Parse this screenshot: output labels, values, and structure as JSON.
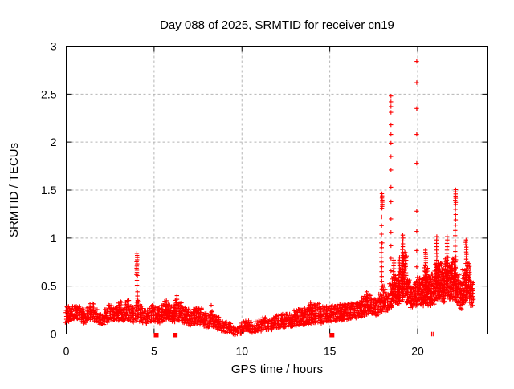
{
  "page": {
    "background": "#ffffff",
    "kind": "gnuplot-style scatter plot screenshot"
  },
  "chart_data": {
    "type": "scatter",
    "title": "Day 088 of 2025, SRMTID for receiver cn19",
    "xlabel": "GPS time / hours",
    "ylabel": "SRMTID / TECUs",
    "receiver": "cn19",
    "day_of_year": "088",
    "year": "2025",
    "xlim": [
      0,
      24
    ],
    "ylim": [
      0,
      3
    ],
    "xticks": [
      0,
      5,
      10,
      15,
      20
    ],
    "yticks": [
      0,
      0.5,
      1,
      1.5,
      2,
      2.5,
      3
    ],
    "grid": true,
    "legend": "none",
    "marker": "plus",
    "marker_color": "#ff0000",
    "grid_color": "#b5b5b5",
    "axis_color": "#000000",
    "band": [
      [
        0.0,
        0.13,
        0.28
      ],
      [
        0.2,
        0.15,
        0.27
      ],
      [
        0.4,
        0.16,
        0.3
      ],
      [
        0.6,
        0.17,
        0.3
      ],
      [
        0.8,
        0.14,
        0.26
      ],
      [
        1.0,
        0.12,
        0.23
      ],
      [
        1.2,
        0.15,
        0.28
      ],
      [
        1.4,
        0.16,
        0.31
      ],
      [
        1.6,
        0.13,
        0.26
      ],
      [
        1.8,
        0.11,
        0.22
      ],
      [
        2.0,
        0.1,
        0.21
      ],
      [
        2.2,
        0.13,
        0.27
      ],
      [
        2.4,
        0.15,
        0.3
      ],
      [
        2.6,
        0.14,
        0.28
      ],
      [
        2.8,
        0.16,
        0.3
      ],
      [
        3.0,
        0.15,
        0.33
      ],
      [
        3.2,
        0.14,
        0.28
      ],
      [
        3.4,
        0.16,
        0.34
      ],
      [
        3.6,
        0.14,
        0.3
      ],
      [
        3.8,
        0.13,
        0.26
      ],
      [
        4.0,
        0.18,
        0.33
      ],
      [
        4.2,
        0.14,
        0.3
      ],
      [
        4.4,
        0.12,
        0.26
      ],
      [
        4.6,
        0.13,
        0.25
      ],
      [
        4.8,
        0.14,
        0.29
      ],
      [
        5.0,
        0.13,
        0.29
      ],
      [
        5.2,
        0.12,
        0.27
      ],
      [
        5.4,
        0.14,
        0.31
      ],
      [
        5.6,
        0.16,
        0.34
      ],
      [
        5.8,
        0.15,
        0.32
      ],
      [
        6.0,
        0.13,
        0.29
      ],
      [
        6.2,
        0.15,
        0.37
      ],
      [
        6.4,
        0.14,
        0.33
      ],
      [
        6.6,
        0.12,
        0.28
      ],
      [
        6.8,
        0.11,
        0.26
      ],
      [
        7.0,
        0.1,
        0.24
      ],
      [
        7.2,
        0.11,
        0.26
      ],
      [
        7.4,
        0.12,
        0.29
      ],
      [
        7.6,
        0.11,
        0.27
      ],
      [
        7.8,
        0.09,
        0.23
      ],
      [
        8.0,
        0.07,
        0.2
      ],
      [
        8.2,
        0.08,
        0.24
      ],
      [
        8.4,
        0.07,
        0.21
      ],
      [
        8.6,
        0.05,
        0.17
      ],
      [
        8.8,
        0.04,
        0.15
      ],
      [
        9.0,
        0.03,
        0.13
      ],
      [
        9.2,
        0.02,
        0.11
      ],
      [
        9.4,
        0.01,
        0.09
      ],
      [
        9.6,
        0.0,
        0.08
      ],
      [
        9.8,
        0.01,
        0.09
      ],
      [
        10.0,
        0.03,
        0.12
      ],
      [
        10.2,
        0.04,
        0.15
      ],
      [
        10.4,
        0.03,
        0.12
      ],
      [
        10.6,
        0.02,
        0.1
      ],
      [
        10.8,
        0.03,
        0.12
      ],
      [
        11.0,
        0.04,
        0.15
      ],
      [
        11.2,
        0.05,
        0.17
      ],
      [
        11.4,
        0.05,
        0.16
      ],
      [
        11.6,
        0.05,
        0.15
      ],
      [
        11.8,
        0.06,
        0.18
      ],
      [
        12.0,
        0.07,
        0.2
      ],
      [
        12.2,
        0.08,
        0.21
      ],
      [
        12.4,
        0.08,
        0.22
      ],
      [
        12.6,
        0.09,
        0.22
      ],
      [
        12.8,
        0.08,
        0.21
      ],
      [
        13.0,
        0.09,
        0.24
      ],
      [
        13.2,
        0.1,
        0.25
      ],
      [
        13.4,
        0.1,
        0.26
      ],
      [
        13.6,
        0.11,
        0.27
      ],
      [
        13.8,
        0.12,
        0.3
      ],
      [
        14.0,
        0.12,
        0.31
      ],
      [
        14.2,
        0.13,
        0.31
      ],
      [
        14.4,
        0.12,
        0.29
      ],
      [
        14.6,
        0.13,
        0.28
      ],
      [
        14.8,
        0.13,
        0.29
      ],
      [
        15.0,
        0.14,
        0.3
      ],
      [
        15.2,
        0.14,
        0.29
      ],
      [
        15.4,
        0.15,
        0.31
      ],
      [
        15.6,
        0.15,
        0.32
      ],
      [
        15.8,
        0.16,
        0.32
      ],
      [
        16.0,
        0.16,
        0.33
      ],
      [
        16.2,
        0.17,
        0.33
      ],
      [
        16.4,
        0.17,
        0.34
      ],
      [
        16.6,
        0.18,
        0.35
      ],
      [
        16.8,
        0.19,
        0.37
      ],
      [
        17.0,
        0.21,
        0.41
      ],
      [
        17.2,
        0.22,
        0.42
      ],
      [
        17.4,
        0.21,
        0.38
      ],
      [
        17.6,
        0.2,
        0.36
      ],
      [
        17.8,
        0.23,
        0.42
      ],
      [
        18.0,
        0.26,
        0.5
      ],
      [
        18.2,
        0.24,
        0.44
      ],
      [
        18.4,
        0.28,
        0.52
      ],
      [
        18.6,
        0.33,
        0.6
      ],
      [
        18.8,
        0.32,
        0.58
      ],
      [
        19.0,
        0.35,
        0.7
      ],
      [
        19.2,
        0.4,
        0.85
      ],
      [
        19.4,
        0.32,
        0.58
      ],
      [
        19.6,
        0.28,
        0.5
      ],
      [
        19.8,
        0.3,
        0.55
      ],
      [
        20.0,
        0.32,
        0.6
      ],
      [
        20.2,
        0.3,
        0.58
      ],
      [
        20.4,
        0.32,
        0.7
      ],
      [
        20.6,
        0.3,
        0.6
      ],
      [
        20.8,
        0.32,
        0.62
      ],
      [
        21.0,
        0.36,
        0.72
      ],
      [
        21.2,
        0.38,
        0.75
      ],
      [
        21.4,
        0.34,
        0.68
      ],
      [
        21.6,
        0.4,
        0.8
      ],
      [
        21.8,
        0.36,
        0.72
      ],
      [
        22.0,
        0.36,
        0.8
      ],
      [
        22.2,
        0.32,
        0.62
      ],
      [
        22.4,
        0.27,
        0.55
      ],
      [
        22.6,
        0.33,
        0.68
      ],
      [
        22.8,
        0.38,
        0.75
      ],
      [
        23.0,
        0.3,
        0.55
      ]
    ],
    "columns": [
      {
        "x": 4.02,
        "y0": 0.62,
        "y1": 0.85,
        "d": 0.022
      },
      {
        "x": 4.04,
        "y0": 0.46,
        "y1": 0.62,
        "d": 0.05
      },
      {
        "x": 4.05,
        "y0": 0.33,
        "y1": 0.46,
        "d": 0.022
      },
      {
        "x": 17.95,
        "y0": 0.5,
        "y1": 0.95,
        "d": 0.05
      },
      {
        "x": 17.97,
        "y0": 0.95,
        "y1": 1.32,
        "d": 0.09
      },
      {
        "x": 17.98,
        "y0": 1.33,
        "y1": 1.47,
        "d": 0.022
      },
      {
        "x": 18.65,
        "y0": 0.35,
        "y1": 0.78,
        "d": 0.03
      },
      {
        "x": 18.95,
        "y0": 0.35,
        "y1": 0.8,
        "d": 0.03
      },
      {
        "x": 19.15,
        "y0": 0.4,
        "y1": 1.05,
        "d": 0.03
      },
      {
        "x": 20.45,
        "y0": 0.72,
        "y1": 0.88,
        "d": 0.022
      },
      {
        "x": 20.45,
        "y0": 0.35,
        "y1": 0.72,
        "d": 0.06
      },
      {
        "x": 21.1,
        "y0": 0.42,
        "y1": 1.02,
        "d": 0.035
      },
      {
        "x": 21.68,
        "y0": 0.42,
        "y1": 1.03,
        "d": 0.035
      },
      {
        "x": 22.15,
        "y0": 1.35,
        "y1": 1.52,
        "d": 0.022
      },
      {
        "x": 22.15,
        "y0": 0.42,
        "y1": 1.34,
        "d": 0.055
      },
      {
        "x": 22.76,
        "y0": 0.78,
        "y1": 1.0,
        "d": 0.025
      },
      {
        "x": 22.76,
        "y0": 0.35,
        "y1": 0.77,
        "d": 0.055
      }
    ],
    "outliers": [
      [
        18.48,
        2.48
      ],
      [
        18.48,
        2.42
      ],
      [
        18.48,
        2.37
      ],
      [
        18.48,
        2.31
      ],
      [
        18.48,
        2.18
      ],
      [
        18.48,
        2.08
      ],
      [
        18.48,
        1.99
      ],
      [
        18.48,
        1.85
      ],
      [
        18.48,
        1.71
      ],
      [
        18.48,
        1.53
      ],
      [
        18.48,
        1.38
      ],
      [
        18.48,
        1.2
      ],
      [
        18.48,
        1.06
      ],
      [
        18.48,
        0.92
      ],
      [
        18.48,
        0.79
      ],
      [
        18.48,
        0.66
      ],
      [
        19.95,
        2.84
      ],
      [
        19.95,
        2.62
      ],
      [
        19.95,
        2.35
      ],
      [
        19.95,
        2.08
      ],
      [
        19.95,
        1.78
      ],
      [
        19.95,
        1.28
      ],
      [
        19.95,
        1.07
      ],
      [
        19.95,
        0.87
      ],
      [
        19.95,
        0.7
      ],
      [
        6.3,
        0.4
      ],
      [
        17.1,
        0.44
      ],
      [
        13.9,
        0.33
      ],
      [
        3.5,
        0.35
      ],
      [
        8.25,
        0.3
      ]
    ],
    "zero_squares": [
      5.12,
      6.2,
      15.12
    ],
    "zero_pluses": [
      20.8,
      20.88
    ]
  }
}
